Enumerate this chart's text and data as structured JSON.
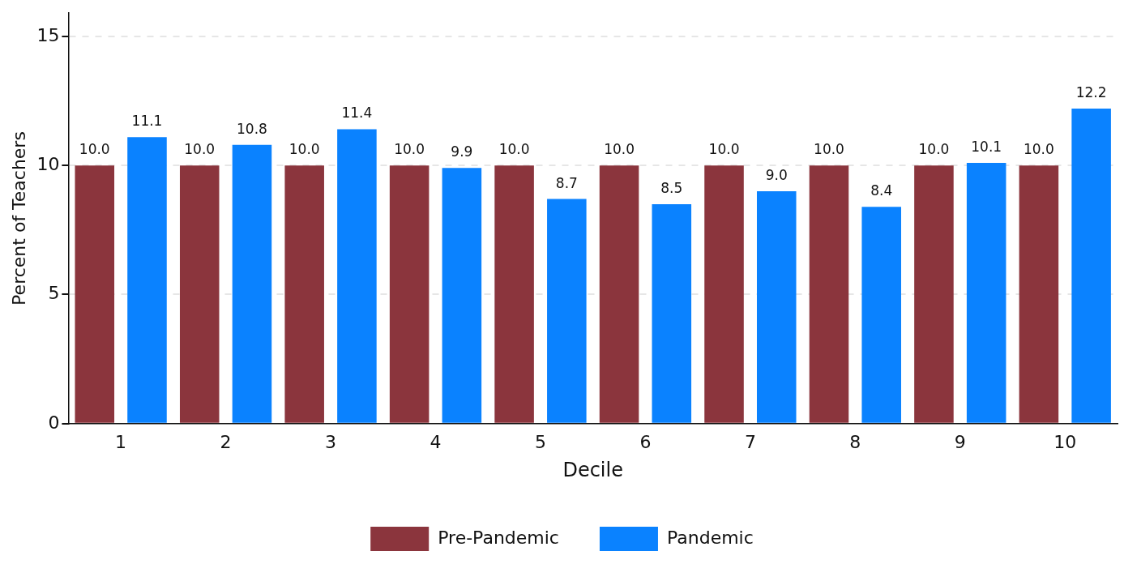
{
  "chart_data": {
    "type": "bar",
    "xlabel": "Decile",
    "ylabel": "Percent of Teachers",
    "categories": [
      "1",
      "2",
      "3",
      "4",
      "5",
      "6",
      "7",
      "8",
      "9",
      "10"
    ],
    "series": [
      {
        "name": "Pre-Pandemic",
        "color": "#8b353d",
        "values": [
          10.0,
          10.0,
          10.0,
          10.0,
          10.0,
          10.0,
          10.0,
          10.0,
          10.0,
          10.0
        ],
        "value_labels": [
          "10.0",
          "10.0",
          "10.0",
          "10.0",
          "10.0",
          "10.0",
          "10.0",
          "10.0",
          "10.0",
          "10.0"
        ]
      },
      {
        "name": "Pandemic",
        "color": "#0a82ff",
        "values": [
          11.1,
          10.8,
          11.4,
          9.9,
          8.7,
          8.5,
          9.0,
          8.4,
          10.1,
          12.2
        ],
        "value_labels": [
          "11.1",
          "10.8",
          "11.4",
          "9.9",
          "8.7",
          "8.5",
          "9.0",
          "8.4",
          "10.1",
          "12.2"
        ]
      }
    ],
    "ylim": [
      0,
      15.9
    ],
    "yticks": [
      0,
      5,
      10,
      15
    ],
    "grid": "y",
    "legend": "bottom"
  }
}
